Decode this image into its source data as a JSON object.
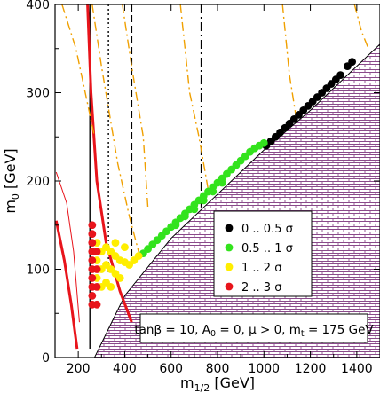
{
  "chart_data": {
    "type": "scatter",
    "xlabel": {
      "main": "m",
      "sub": "1/2",
      "unit": " [GeV]"
    },
    "ylabel": {
      "main": "m",
      "sub": "0",
      "unit": " [GeV]"
    },
    "xlim": [
      100,
      1500
    ],
    "ylim": [
      0,
      400
    ],
    "xticks": [
      200,
      400,
      600,
      800,
      1000,
      1200,
      1400
    ],
    "yticks": [
      0,
      100,
      200,
      300,
      400
    ],
    "excluded_region": {
      "description_fill": "hatched",
      "boundary": [
        [
          270,
          0
        ],
        [
          400,
          70
        ],
        [
          600,
          135
        ],
        [
          800,
          185
        ],
        [
          1000,
          235
        ],
        [
          1200,
          280
        ],
        [
          1400,
          330
        ],
        [
          1500,
          355
        ]
      ]
    },
    "legend": {
      "position": "right-middle",
      "entries": [
        {
          "label": "0 .. 0.5 σ",
          "color": "#000000"
        },
        {
          "label": "0.5 .. 1 σ",
          "color": "#33e31d"
        },
        {
          "label": "1 .. 2 σ",
          "color": "#ffee00"
        },
        {
          "label": "2 .. 3 σ",
          "color": "#e8141b"
        }
      ]
    },
    "annotation": {
      "segments": [
        "tanβ = 10, A",
        "0",
        " = 0, μ > 0, m",
        "t",
        " = 175 GeV"
      ],
      "position": "bottom-right"
    },
    "series": [
      {
        "class": "black",
        "color": "#000000",
        "points": [
          [
            1010,
            240
          ],
          [
            1030,
            245
          ],
          [
            1050,
            250
          ],
          [
            1070,
            255
          ],
          [
            1090,
            260
          ],
          [
            1110,
            265
          ],
          [
            1130,
            270
          ],
          [
            1150,
            275
          ],
          [
            1170,
            280
          ],
          [
            1190,
            285
          ],
          [
            1210,
            290
          ],
          [
            1230,
            295
          ],
          [
            1250,
            300
          ],
          [
            1270,
            305
          ],
          [
            1290,
            310
          ],
          [
            1310,
            315
          ],
          [
            1330,
            320
          ],
          [
            1360,
            330
          ],
          [
            1380,
            335
          ]
        ]
      },
      {
        "class": "green",
        "color": "#33e31d",
        "points": [
          [
            480,
            118
          ],
          [
            500,
            123
          ],
          [
            520,
            128
          ],
          [
            540,
            133
          ],
          [
            560,
            138
          ],
          [
            580,
            143
          ],
          [
            600,
            148
          ],
          [
            620,
            153
          ],
          [
            640,
            158
          ],
          [
            660,
            163
          ],
          [
            680,
            168
          ],
          [
            700,
            173
          ],
          [
            720,
            178
          ],
          [
            740,
            183
          ],
          [
            760,
            188
          ],
          [
            780,
            193
          ],
          [
            800,
            198
          ],
          [
            820,
            203
          ],
          [
            840,
            208
          ],
          [
            860,
            213
          ],
          [
            880,
            218
          ],
          [
            900,
            223
          ],
          [
            920,
            228
          ],
          [
            940,
            233
          ],
          [
            960,
            237
          ],
          [
            980,
            240
          ],
          [
            1000,
            243
          ],
          [
            620,
            150
          ],
          [
            660,
            160
          ],
          [
            700,
            168
          ],
          [
            740,
            178
          ],
          [
            780,
            188
          ],
          [
            820,
            198
          ]
        ]
      },
      {
        "class": "yellow",
        "color": "#ffee00",
        "points": [
          [
            280,
            130
          ],
          [
            280,
            110
          ],
          [
            280,
            90
          ],
          [
            300,
            120
          ],
          [
            300,
            100
          ],
          [
            300,
            80
          ],
          [
            320,
            125
          ],
          [
            320,
            105
          ],
          [
            320,
            85
          ],
          [
            340,
            120
          ],
          [
            340,
            100
          ],
          [
            340,
            80
          ],
          [
            360,
            115
          ],
          [
            360,
            95
          ],
          [
            380,
            110
          ],
          [
            380,
            90
          ],
          [
            400,
            108
          ],
          [
            420,
            105
          ],
          [
            440,
            110
          ],
          [
            460,
            115
          ],
          [
            400,
            125
          ],
          [
            360,
            130
          ]
        ]
      },
      {
        "class": "red",
        "color": "#e8141b",
        "points": [
          [
            260,
            150
          ],
          [
            260,
            140
          ],
          [
            260,
            130
          ],
          [
            260,
            120
          ],
          [
            260,
            110
          ],
          [
            260,
            100
          ],
          [
            260,
            90
          ],
          [
            260,
            80
          ],
          [
            260,
            70
          ],
          [
            260,
            60
          ],
          [
            280,
            120
          ],
          [
            280,
            100
          ],
          [
            280,
            80
          ],
          [
            280,
            60
          ]
        ]
      }
    ],
    "lines": [
      {
        "name": "solid-black",
        "style": "solid",
        "color": "#000000",
        "width": 1.4,
        "points": [
          [
            250,
            400
          ],
          [
            250,
            10
          ]
        ]
      },
      {
        "name": "dotted-black",
        "style": "dotted",
        "color": "#000000",
        "width": 1.4,
        "points": [
          [
            330,
            400
          ],
          [
            330,
            95
          ]
        ]
      },
      {
        "name": "dashed-black",
        "style": "dashed",
        "color": "#000000",
        "width": 1.6,
        "points": [
          [
            430,
            400
          ],
          [
            430,
            110
          ]
        ]
      },
      {
        "name": "dashdot-black",
        "style": "dashdot",
        "color": "#000000",
        "width": 1.6,
        "points": [
          [
            730,
            400
          ],
          [
            730,
            170
          ]
        ]
      },
      {
        "name": "red-thick-1",
        "style": "solid",
        "color": "#e8141b",
        "width": 3,
        "points": [
          [
            240,
            400
          ],
          [
            255,
            300
          ],
          [
            280,
            200
          ],
          [
            320,
            130
          ],
          [
            380,
            75
          ],
          [
            430,
            40
          ]
        ]
      },
      {
        "name": "red-thick-2",
        "style": "solid",
        "color": "#e8141b",
        "width": 3,
        "points": [
          [
            105,
            155
          ],
          [
            140,
            110
          ],
          [
            170,
            60
          ],
          [
            195,
            10
          ]
        ]
      },
      {
        "name": "red-thin",
        "style": "solid",
        "color": "#e8141b",
        "width": 1,
        "points": [
          [
            105,
            210
          ],
          [
            150,
            175
          ],
          [
            180,
            120
          ],
          [
            205,
            40
          ]
        ]
      },
      {
        "name": "orange-dashdot-1",
        "style": "dashdot",
        "color": "#f0a000",
        "width": 1.4,
        "points": [
          [
            130,
            400
          ],
          [
            190,
            350
          ],
          [
            230,
            300
          ],
          [
            270,
            250
          ]
        ]
      },
      {
        "name": "orange-dashdot-2",
        "style": "dashdot",
        "color": "#f0a000",
        "width": 1.4,
        "points": [
          [
            260,
            400
          ],
          [
            300,
            330
          ],
          [
            370,
            220
          ],
          [
            420,
            160
          ],
          [
            470,
            110
          ]
        ]
      },
      {
        "name": "orange-dashdot-3",
        "style": "dashdot",
        "color": "#f0a000",
        "width": 1.4,
        "points": [
          [
            390,
            400
          ],
          [
            430,
            330
          ],
          [
            480,
            250
          ],
          [
            500,
            170
          ]
        ]
      },
      {
        "name": "orange-dashdot-4",
        "style": "dashdot",
        "color": "#f0a000",
        "width": 1.4,
        "points": [
          [
            640,
            400
          ],
          [
            680,
            300
          ],
          [
            720,
            250
          ],
          [
            760,
            190
          ]
        ]
      },
      {
        "name": "orange-dashdot-5",
        "style": "dashdot",
        "color": "#f0a000",
        "width": 1.4,
        "points": [
          [
            1080,
            400
          ],
          [
            1110,
            320
          ],
          [
            1140,
            270
          ]
        ]
      },
      {
        "name": "orange-dashdot-6",
        "style": "dashdot",
        "color": "#f0a000",
        "width": 1.4,
        "points": [
          [
            1390,
            400
          ],
          [
            1420,
            370
          ],
          [
            1450,
            350
          ]
        ]
      }
    ]
  }
}
